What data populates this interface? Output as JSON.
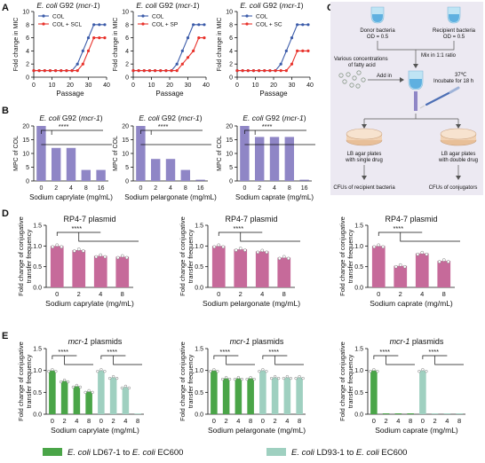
{
  "panels": {
    "A": "A",
    "B": "B",
    "C": "C",
    "D": "D",
    "E": "E"
  },
  "colors": {
    "col": "#3b5ba9",
    "treat": "#e8312a",
    "bar_purple": "#8f86c6",
    "bar_pink": "#c66a9a",
    "bar_green": "#4aa548",
    "bar_teal": "#9fd0c0",
    "panelC_bg": "#ece9f2"
  },
  "texts": {
    "ecoli_g92": "E. coli G92",
    "mcr1_paren": "(mcr-1)",
    "rp4": "RP4-7 plasmid",
    "mcr1": "mcr-1",
    "plasmids": "plasmids",
    "fold_mic": "Fold change in MIC",
    "passage": "Passage",
    "mpc": "MPC of COL",
    "fold_conj_1": "Fold change of conjugative",
    "fold_conj_2": "transfer frequency",
    "sig": "****",
    "legend_green_a": "E. coli",
    "legend_green_b": "LD67-1 to",
    "legend_green_c": "E. coli",
    "legend_green_d": "EC600",
    "legend_teal_a": "E. coli",
    "legend_teal_b": "LD93-1 to",
    "legend_teal_c": "E. coli",
    "legend_teal_d": "EC600"
  },
  "diagram": {
    "donor_1": "Donor bacteria",
    "donor_2": "OD = 0.5",
    "recipient_1": "Recipient  bacteria",
    "recipient_2": "OD = 0.5",
    "mix": "Mix in 1:1 ratio",
    "fatty_1": "Various concentrations",
    "fatty_2": "of fatty acid",
    "add": "Add in",
    "temp": "37℃",
    "incubate": "Incubate for 18 h",
    "plate_l1": "LB agar plates",
    "plate_l2": "with single drug",
    "plate_r1": "LB agar plates",
    "plate_r2": "with double drug",
    "cfu_l": "CFUs of recipient bacteria",
    "cfu_r": "CFUs of conjugators"
  },
  "chart_data": [
    {
      "id": "A1",
      "type": "line",
      "title": "E. coli G92 (mcr-1)",
      "xlabel": "Passage",
      "ylabel": "Fold change in MIC",
      "xlim": [
        0,
        40
      ],
      "ylim": [
        0,
        10
      ],
      "xticks": [
        "0",
        "10",
        "20",
        "30",
        "40"
      ],
      "yticks": [
        "0",
        "2",
        "4",
        "6",
        "8",
        "10"
      ],
      "legend": "top-left",
      "series": [
        {
          "name": "COL",
          "x": [
            0,
            3,
            6,
            9,
            12,
            15,
            18,
            21,
            24,
            27,
            30,
            33,
            36,
            39
          ],
          "y": [
            1,
            1,
            1,
            1,
            1,
            1,
            1,
            1,
            2,
            4,
            6,
            8,
            8,
            8
          ]
        },
        {
          "name": "COL + SCL",
          "x": [
            0,
            3,
            6,
            9,
            12,
            15,
            18,
            21,
            24,
            27,
            30,
            33,
            36,
            39
          ],
          "y": [
            1,
            1,
            1,
            1,
            1,
            1,
            1,
            1,
            1,
            2,
            4,
            6,
            6,
            6
          ]
        }
      ]
    },
    {
      "id": "A2",
      "type": "line",
      "title": "E. coli G92 (mcr-1)",
      "xlabel": "Passage",
      "ylabel": "Fold change in MIC",
      "xlim": [
        0,
        40
      ],
      "ylim": [
        0,
        10
      ],
      "xticks": [
        "0",
        "10",
        "20",
        "30",
        "40"
      ],
      "yticks": [
        "0",
        "2",
        "4",
        "6",
        "8",
        "10"
      ],
      "legend": "top-left",
      "series": [
        {
          "name": "COL",
          "x": [
            0,
            3,
            6,
            9,
            12,
            15,
            18,
            21,
            24,
            27,
            30,
            33,
            36,
            39
          ],
          "y": [
            1,
            1,
            1,
            1,
            1,
            1,
            1,
            1,
            2,
            4,
            6,
            8,
            8,
            8
          ]
        },
        {
          "name": "COL + SP",
          "x": [
            0,
            3,
            6,
            9,
            12,
            15,
            18,
            21,
            24,
            27,
            30,
            33,
            36,
            39
          ],
          "y": [
            1,
            1,
            1,
            1,
            1,
            1,
            1,
            1,
            1,
            2,
            3,
            4,
            6,
            6
          ]
        }
      ]
    },
    {
      "id": "A3",
      "type": "line",
      "title": "E. coli G92 (mcr-1)",
      "xlabel": "Passage",
      "ylabel": "Fold change in MIC",
      "xlim": [
        0,
        40
      ],
      "ylim": [
        0,
        10
      ],
      "xticks": [
        "0",
        "10",
        "20",
        "30",
        "40"
      ],
      "yticks": [
        "0",
        "2",
        "4",
        "6",
        "8",
        "10"
      ],
      "legend": "top-left",
      "series": [
        {
          "name": "COL",
          "x": [
            0,
            3,
            6,
            9,
            12,
            15,
            18,
            21,
            24,
            27,
            30,
            33,
            36,
            39
          ],
          "y": [
            1,
            1,
            1,
            1,
            1,
            1,
            1,
            1,
            2,
            4,
            6,
            8,
            8,
            8
          ]
        },
        {
          "name": "COL + SC",
          "x": [
            0,
            3,
            6,
            9,
            12,
            15,
            18,
            21,
            24,
            27,
            30,
            33,
            36,
            39
          ],
          "y": [
            1,
            1,
            1,
            1,
            1,
            1,
            1,
            1,
            1,
            1,
            2,
            4,
            4,
            4
          ]
        }
      ]
    },
    {
      "id": "B1",
      "type": "bar",
      "title": "E. coli G92 (mcr-1)",
      "xlabel": "Sodium caprylate (mg/mL)",
      "ylabel": "MPC of COL",
      "categories": [
        "0",
        "2",
        "4",
        "8",
        "16"
      ],
      "values": [
        20,
        12,
        12,
        4,
        4
      ],
      "ylim": [
        0,
        20
      ],
      "yticks": [
        "0",
        "5",
        "10",
        "15",
        "20"
      ]
    },
    {
      "id": "B2",
      "type": "bar",
      "title": "E. coli G92 (mcr-1)",
      "xlabel": "Sodium pelargonate (mg/mL)",
      "ylabel": "MPC of COL",
      "categories": [
        "0",
        "2",
        "4",
        "8",
        "16"
      ],
      "values": [
        20,
        8,
        8,
        4,
        0
      ],
      "ylim": [
        0,
        20
      ],
      "yticks": [
        "0",
        "5",
        "10",
        "15",
        "20"
      ]
    },
    {
      "id": "B3",
      "type": "bar",
      "title": "E. coli G92 (mcr-1)",
      "xlabel": "Sodium caprate (mg/mL)",
      "ylabel": "MPC of COL",
      "categories": [
        "0",
        "2",
        "4",
        "8",
        "16"
      ],
      "values": [
        20,
        16,
        16,
        16,
        0
      ],
      "ylim": [
        0,
        20
      ],
      "yticks": [
        "0",
        "5",
        "10",
        "15",
        "20"
      ]
    },
    {
      "id": "D1",
      "type": "bar",
      "title": "RP4-7 plasmid",
      "xlabel": "Sodium caprylate (mg/mL)",
      "ylabel": "Fold change of conjugative transfer frequency",
      "categories": [
        "0",
        "2",
        "4",
        "8"
      ],
      "values": [
        1.0,
        0.9,
        0.76,
        0.74
      ],
      "ylim": [
        0,
        1.5
      ],
      "yticks": [
        "0.0",
        "0.5",
        "1.0",
        "1.5"
      ]
    },
    {
      "id": "D2",
      "type": "bar",
      "title": "RP4-7 plasmid",
      "xlabel": "Sodium pelargonate (mg/mL)",
      "ylabel": "Fold change of conjugative transfer frequency",
      "categories": [
        "0",
        "2",
        "4",
        "8"
      ],
      "values": [
        1.0,
        0.92,
        0.87,
        0.72
      ],
      "ylim": [
        0,
        1.5
      ],
      "yticks": [
        "0.0",
        "0.5",
        "1.0",
        "1.5"
      ]
    },
    {
      "id": "D3",
      "type": "bar",
      "title": "RP4-7 plasmid",
      "xlabel": "Sodium caprate (mg/mL)",
      "ylabel": "Fold change of conjugative transfer frequency",
      "categories": [
        "0",
        "2",
        "4",
        "8"
      ],
      "values": [
        1.0,
        0.52,
        0.82,
        0.64
      ],
      "ylim": [
        0,
        1.5
      ],
      "yticks": [
        "0.0",
        "0.5",
        "1.0",
        "1.5"
      ]
    },
    {
      "id": "E1",
      "type": "bar",
      "title": "mcr-1 plasmids",
      "xlabel": "Sodium caprylate (mg/mL)",
      "ylabel": "Fold change of conjugative transfer frequency",
      "categories": [
        "0",
        "2",
        "4",
        "8"
      ],
      "ylim": [
        0,
        1.5
      ],
      "yticks": [
        "0.0",
        "0.5",
        "1.0",
        "1.5"
      ],
      "series": [
        {
          "name": "E. coli LD67-1 to E. coli EC600",
          "values": [
            1.0,
            0.76,
            0.64,
            0.52
          ]
        },
        {
          "name": "E. coli LD93-1 to E. coli EC600",
          "values": [
            1.0,
            0.84,
            0.62,
            0.0
          ]
        }
      ]
    },
    {
      "id": "E2",
      "type": "bar",
      "title": "mcr-1 plasmids",
      "xlabel": "Sodium pelargonate (mg/mL)",
      "ylabel": "Fold change of conjugative transfer frequency",
      "categories": [
        "0",
        "2",
        "4",
        "8"
      ],
      "ylim": [
        0,
        1.5
      ],
      "yticks": [
        "0.0",
        "0.5",
        "1.0",
        "1.5"
      ],
      "series": [
        {
          "name": "E. coli LD67-1 to E. coli EC600",
          "values": [
            1.0,
            0.82,
            0.82,
            0.82
          ]
        },
        {
          "name": "E. coli LD93-1 to E. coli EC600",
          "values": [
            1.0,
            0.84,
            0.84,
            0.84
          ]
        }
      ]
    },
    {
      "id": "E3",
      "type": "bar",
      "title": "mcr-1 plasmids",
      "xlabel": "Sodium caprate (mg/mL)",
      "ylabel": "Fold change of conjugative transfer frequency",
      "categories": [
        "0",
        "2",
        "4",
        "8"
      ],
      "ylim": [
        0,
        1.5
      ],
      "yticks": [
        "0.0",
        "0.5",
        "1.0",
        "1.5"
      ],
      "series": [
        {
          "name": "E. coli LD67-1 to E. coli EC600",
          "values": [
            1.0,
            0.02,
            0.02,
            0.02
          ]
        },
        {
          "name": "E. coli LD93-1 to E. coli EC600",
          "values": [
            1.0,
            0.02,
            0.02,
            0.02
          ]
        }
      ]
    }
  ]
}
